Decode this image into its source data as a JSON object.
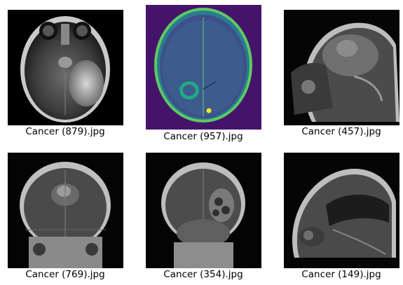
{
  "gallery": {
    "items": [
      {
        "caption": "Cancer (879).jpg",
        "view": "axial MRI, grayscale"
      },
      {
        "caption": "Cancer (957).jpg",
        "view": "axial MRI, viridis colormap"
      },
      {
        "caption": "Cancer (457).jpg",
        "view": "sagittal MRI, grayscale"
      },
      {
        "caption": "Cancer (769).jpg",
        "view": "coronal MRI, grayscale"
      },
      {
        "caption": "Cancer (354).jpg",
        "view": "coronal MRI, grayscale"
      },
      {
        "caption": "Cancer (149).jpg",
        "view": "sagittal MRI, grayscale"
      }
    ]
  }
}
